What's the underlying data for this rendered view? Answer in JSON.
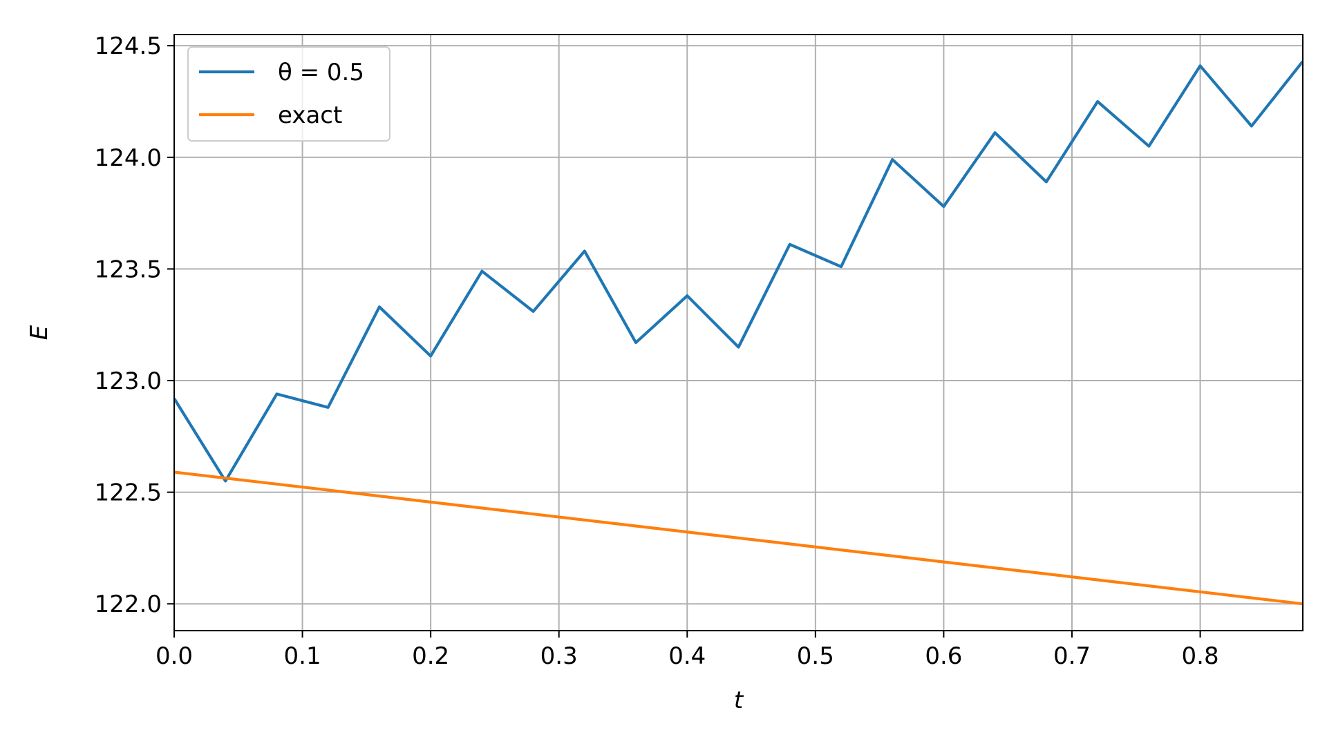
{
  "chart_data": {
    "type": "line",
    "title": "",
    "xlabel": "t",
    "ylabel": "E",
    "xlim": [
      0.0,
      0.88
    ],
    "ylim": [
      121.88,
      124.55
    ],
    "grid": true,
    "legend_position": "top-left",
    "x_ticks": [
      "0.0",
      "0.1",
      "0.2",
      "0.3",
      "0.4",
      "0.5",
      "0.6",
      "0.7",
      "0.8"
    ],
    "y_ticks": [
      "122.0",
      "122.5",
      "123.0",
      "123.5",
      "124.0",
      "124.5"
    ],
    "series": [
      {
        "name": "θ = 0.5",
        "color": "#1f77b4",
        "x": [
          0.0,
          0.04,
          0.08,
          0.12,
          0.16,
          0.2,
          0.24,
          0.28,
          0.32,
          0.36,
          0.4,
          0.44,
          0.48,
          0.52,
          0.56,
          0.6,
          0.64,
          0.68,
          0.72,
          0.76,
          0.8,
          0.84,
          0.88
        ],
        "y": [
          122.92,
          122.55,
          122.94,
          122.88,
          123.33,
          123.11,
          123.49,
          123.31,
          123.58,
          123.17,
          123.38,
          123.15,
          123.61,
          123.51,
          123.99,
          123.78,
          124.11,
          123.89,
          124.25,
          124.05,
          124.41,
          124.14,
          124.43
        ]
      },
      {
        "name": "exact",
        "color": "#ff7f0e",
        "x": [
          0.0,
          0.88
        ],
        "y": [
          122.59,
          122.0
        ]
      }
    ]
  }
}
